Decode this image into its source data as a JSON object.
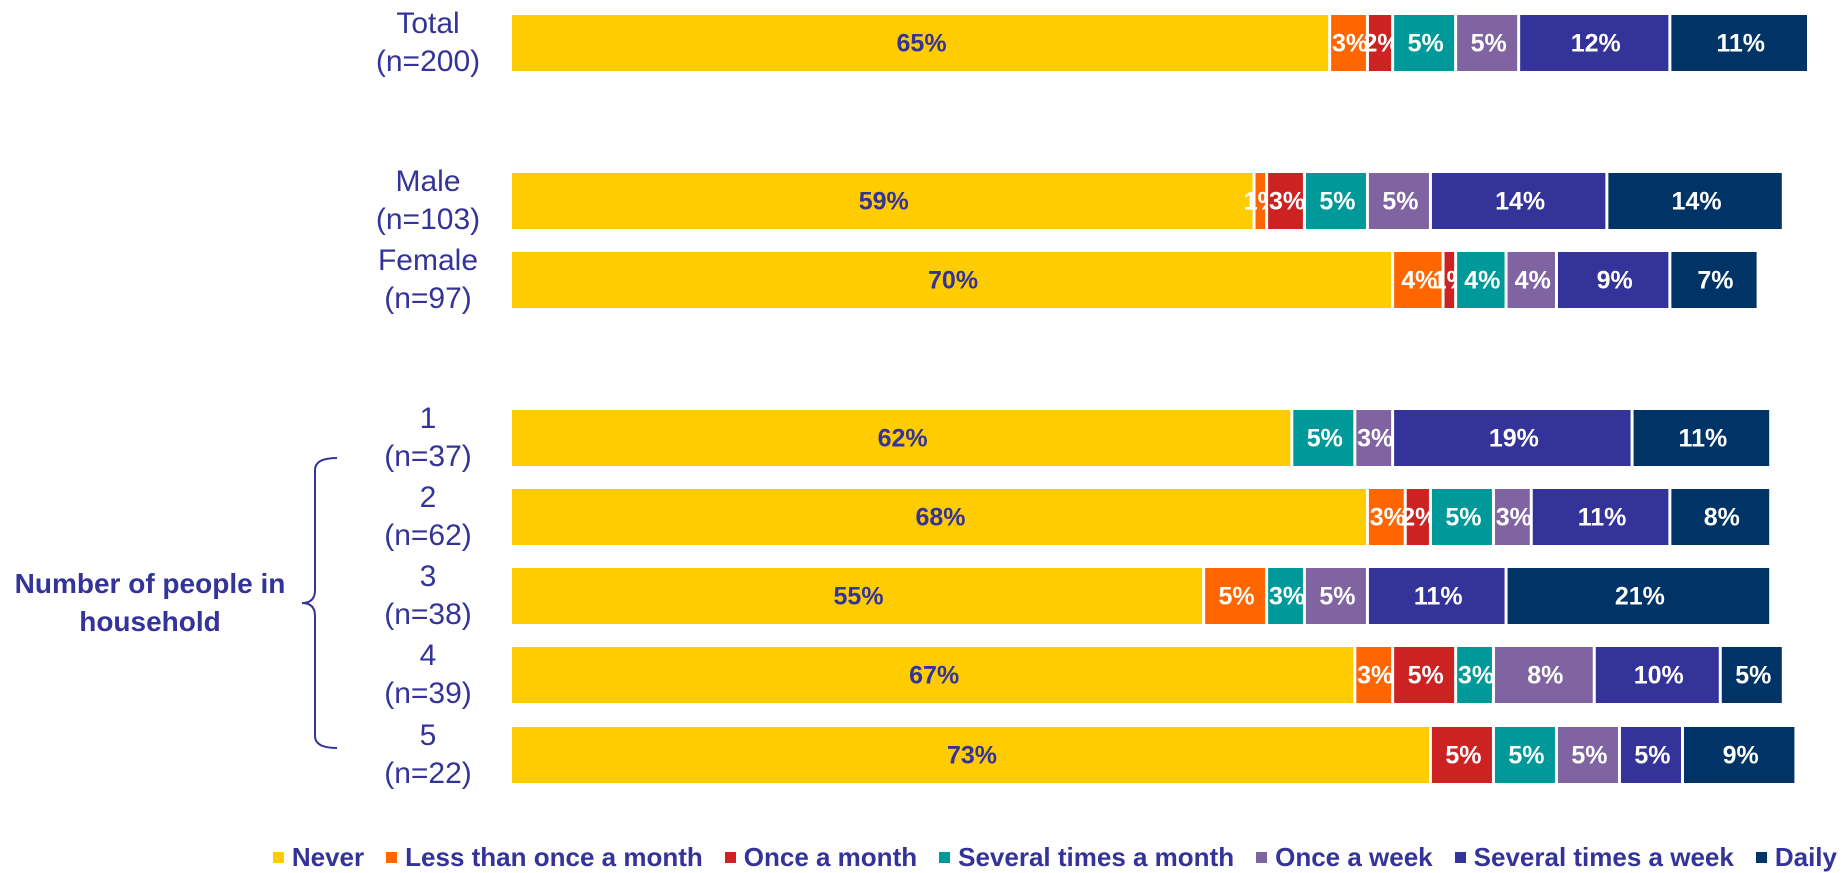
{
  "chart_data": {
    "type": "stacked-barh",
    "categories": [
      "Total (n=200)",
      "Male (n=103)",
      "Female (n=97)",
      "1 (n=37)",
      "2 (n=62)",
      "3 (n=38)",
      "4 (n=39)",
      "5 (n=22)"
    ],
    "group_label": "Number of people in household",
    "xlim": [
      0,
      103
    ],
    "series": [
      {
        "name": "Never",
        "color": "#FFCC00",
        "values": [
          65,
          59,
          70,
          62,
          68,
          55,
          67,
          73
        ],
        "value_labels": [
          "65%",
          "59%",
          "70%",
          "62%",
          "68%",
          "55%",
          "67%",
          "73%"
        ]
      },
      {
        "name": "Less than once a month",
        "color": "#FF6600",
        "values": [
          3,
          1,
          4,
          null,
          3,
          5,
          3,
          null
        ],
        "value_labels": [
          "3%",
          "1%",
          "4%",
          null,
          "3%",
          "5%",
          "3%",
          null
        ]
      },
      {
        "name": "Once a month",
        "color": "#CC2222",
        "values": [
          2,
          3,
          1,
          null,
          2,
          null,
          5,
          5
        ],
        "value_labels": [
          "2%",
          "3%",
          "1%",
          null,
          "2%",
          null,
          "5%",
          "5%"
        ]
      },
      {
        "name": "Several times a month",
        "color": "#009999",
        "values": [
          5,
          5,
          4,
          5,
          5,
          3,
          3,
          5
        ],
        "value_labels": [
          "5%",
          "5%",
          "4%",
          "5%",
          "5%",
          "3%",
          "3%",
          "5%"
        ]
      },
      {
        "name": "Once a week",
        "color": "#8064A2",
        "values": [
          5,
          5,
          4,
          3,
          3,
          5,
          8,
          5
        ],
        "value_labels": [
          "5%",
          "5%",
          "4%",
          "3%",
          "3%",
          "5%",
          "8%",
          "5%"
        ]
      },
      {
        "name": "Several times a week",
        "color": "#333399",
        "values": [
          12,
          14,
          9,
          19,
          11,
          11,
          10,
          5
        ],
        "value_labels": [
          "12%",
          "14%",
          "9%",
          "19%",
          "11%",
          "11%",
          "10%",
          "5%"
        ]
      },
      {
        "name": "Daily",
        "color": "#003366",
        "values": [
          11,
          14,
          7,
          11,
          8,
          21,
          5,
          9
        ],
        "value_labels": [
          "11%",
          "14%",
          "7%",
          "11%",
          "8%",
          "21%",
          "5%",
          "9%"
        ]
      }
    ]
  }
}
